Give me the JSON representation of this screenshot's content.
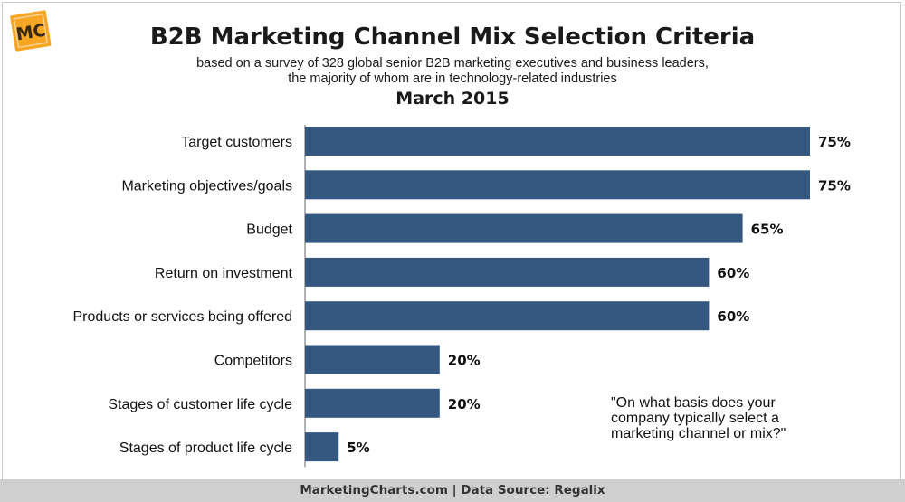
{
  "logo": {
    "text": "MC"
  },
  "header": {
    "title": "B2B Marketing Channel Mix Selection Criteria",
    "subtitle_line1": "based on a survey of 328 global senior B2B marketing executives and business leaders,",
    "subtitle_line2": "the majority of whom are in technology-related industries",
    "date": "March 2015"
  },
  "chart_data": {
    "type": "bar",
    "orientation": "horizontal",
    "categories": [
      "Target customers",
      "Marketing objectives/goals",
      "Budget",
      "Return on investment",
      "Products or services being offered",
      "Competitors",
      "Stages of customer life cycle",
      "Stages of product life cycle"
    ],
    "values": [
      75,
      75,
      65,
      60,
      60,
      20,
      20,
      5
    ],
    "value_labels": [
      "75%",
      "75%",
      "65%",
      "60%",
      "60%",
      "20%",
      "20%",
      "5%"
    ],
    "xlim": [
      0,
      75
    ],
    "grid": false,
    "bar_color": "#34587f"
  },
  "note": {
    "line1": "\"On what basis does your",
    "line2": "company typically select a",
    "line3": "marketing channel or mix?\""
  },
  "footer": {
    "text": "MarketingCharts.com | Data Source: Regalix"
  }
}
